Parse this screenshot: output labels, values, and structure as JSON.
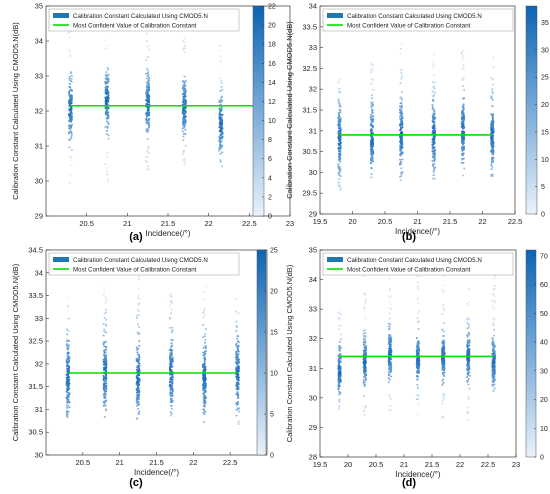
{
  "colors": {
    "scatter": "#1f77b4",
    "fit_line": "#00e000",
    "cmap_low": "#e9f2fb",
    "cmap_high": "#0a64b5"
  },
  "chart_data": [
    {
      "type": "scatter",
      "panel_label": "(a)",
      "ylabel": "Calibration Constant Calculated Using CMOD5.N(dB)",
      "xlabel": "Incidence(/°)",
      "xlim": [
        20,
        23
      ],
      "ylim": [
        29,
        35
      ],
      "xticks": [
        20.5,
        21,
        21.5,
        22,
        22.5,
        23
      ],
      "xtick_labels": [
        "20.5",
        "21",
        "21.5",
        "22",
        "22.5",
        "23"
      ],
      "yticks": [
        29,
        30,
        31,
        32,
        33,
        34,
        35
      ],
      "ytick_labels": [
        "29",
        "30",
        "31",
        "32",
        "33",
        "34",
        "35"
      ],
      "colorbar_ticks": [
        0,
        2,
        4,
        6,
        8,
        10,
        12,
        14,
        16,
        18,
        20,
        22
      ],
      "colorbar_tick_labels": [
        "0",
        "2",
        "4",
        "6",
        "8",
        "10",
        "12",
        "14",
        "16",
        "18",
        "20",
        "22"
      ],
      "colorbar_range": [
        0,
        22
      ],
      "legend": [
        "Calibration Constant Calculated Using CMOD5.N",
        "Most Confident Value of Calibration Constant"
      ],
      "legend_position": "top-left",
      "fit_line": {
        "x": [
          20.3,
          22.6
        ],
        "y": 32.15
      },
      "clusters": [
        {
          "x": 20.3,
          "ymin": 29.9,
          "ymax": 34.6,
          "center": 32.1
        },
        {
          "x": 20.75,
          "ymin": 29.8,
          "ymax": 34.7,
          "center": 32.3
        },
        {
          "x": 21.25,
          "ymin": 30.3,
          "ymax": 34.6,
          "center": 32.2
        },
        {
          "x": 21.7,
          "ymin": 30.3,
          "ymax": 34.6,
          "center": 32.1
        },
        {
          "x": 22.15,
          "ymin": 30.4,
          "ymax": 34.7,
          "center": 31.6
        },
        {
          "x": 22.6,
          "ymin": 30.2,
          "ymax": 34.5,
          "center": 31.7
        }
      ]
    },
    {
      "type": "scatter",
      "panel_label": "(b)",
      "ylabel": "Calibration Constant Calculated Using CMOD5.N(dB)",
      "xlabel": "Incidence(/°)",
      "xlim": [
        19.5,
        22.5
      ],
      "ylim": [
        29,
        34
      ],
      "xticks": [
        19.5,
        20,
        20.5,
        21,
        21.5,
        22,
        22.5
      ],
      "xtick_labels": [
        "19.5",
        "20",
        "20.5",
        "21",
        "21.5",
        "22",
        "22.5"
      ],
      "yticks": [
        29,
        29.5,
        30,
        30.5,
        31,
        31.5,
        32,
        32.5,
        33,
        33.5,
        34
      ],
      "ytick_labels": [
        "29",
        "29.5",
        "30",
        "30.5",
        "31",
        "31.5",
        "32",
        "32.5",
        "33",
        "33.5",
        "34"
      ],
      "colorbar_ticks": [
        0,
        5,
        10,
        15,
        20,
        25,
        30,
        35
      ],
      "colorbar_tick_labels": [
        "0",
        "5",
        "10",
        "15",
        "20",
        "25",
        "30",
        "35"
      ],
      "colorbar_range": [
        0,
        38
      ],
      "legend": [
        "Calibration Constant Calculated Using CMOD5.N",
        "Most Confident Value of Calibration Constant"
      ],
      "legend_position": "top-left",
      "fit_line": {
        "x": [
          19.8,
          22.15
        ],
        "y": 30.9
      },
      "clusters": [
        {
          "x": 19.8,
          "ymin": 29.5,
          "ymax": 32.4,
          "center": 30.8
        },
        {
          "x": 20.3,
          "ymin": 29.7,
          "ymax": 32.7,
          "center": 30.8
        },
        {
          "x": 20.75,
          "ymin": 29.8,
          "ymax": 33.1,
          "center": 30.9
        },
        {
          "x": 21.25,
          "ymin": 29.8,
          "ymax": 33.0,
          "center": 30.9
        },
        {
          "x": 21.7,
          "ymin": 29.9,
          "ymax": 33.1,
          "center": 31.0
        },
        {
          "x": 22.15,
          "ymin": 29.9,
          "ymax": 32.9,
          "center": 30.9
        }
      ]
    },
    {
      "type": "scatter",
      "panel_label": "(c)",
      "ylabel": "Calibration Constant Calculated Using CMOD5.N(dB)",
      "xlabel": "Incidence(/°)",
      "xlim": [
        20,
        23
      ],
      "ylim": [
        30,
        34.5
      ],
      "xticks": [
        20.5,
        21,
        21.5,
        22,
        22.5
      ],
      "xtick_labels": [
        "20.5",
        "21",
        "21.5",
        "22",
        "22.5"
      ],
      "yticks": [
        30,
        30.5,
        31,
        31.5,
        32,
        32.5,
        33,
        33.5,
        34,
        34.5
      ],
      "ytick_labels": [
        "30",
        "30.5",
        "31",
        "31.5",
        "32",
        "32.5",
        "33",
        "33.5",
        "34",
        "34.5"
      ],
      "colorbar_ticks": [
        0,
        5,
        10,
        15,
        20,
        25
      ],
      "colorbar_tick_labels": [
        "0",
        "5",
        "10",
        "15",
        "20",
        "25"
      ],
      "colorbar_range": [
        0,
        25
      ],
      "legend": [
        "Calibration Constant Calculated Using CMOD5.N",
        "Most Confident Value of Calibration Constant"
      ],
      "legend_position": "top-left",
      "fit_line": {
        "x": [
          20.3,
          22.6
        ],
        "y": 31.8
      },
      "clusters": [
        {
          "x": 20.3,
          "ymin": 30.8,
          "ymax": 33.5,
          "center": 31.7
        },
        {
          "x": 20.8,
          "ymin": 30.8,
          "ymax": 33.7,
          "center": 31.8
        },
        {
          "x": 21.25,
          "ymin": 30.8,
          "ymax": 34.0,
          "center": 31.7
        },
        {
          "x": 21.7,
          "ymin": 30.8,
          "ymax": 33.7,
          "center": 31.8
        },
        {
          "x": 22.15,
          "ymin": 30.7,
          "ymax": 33.7,
          "center": 31.7
        },
        {
          "x": 22.6,
          "ymin": 30.6,
          "ymax": 33.6,
          "center": 31.8
        }
      ]
    },
    {
      "type": "scatter",
      "panel_label": "(d)",
      "ylabel": "Calibration Constant Calculated Using CMOD5.N(dB)",
      "xlabel": "Incidence(/°)",
      "xlim": [
        19.5,
        23
      ],
      "ylim": [
        28,
        35
      ],
      "xticks": [
        19.5,
        20,
        20.5,
        21,
        21.5,
        22,
        22.5,
        23
      ],
      "xtick_labels": [
        "19.5",
        "20",
        "20.5",
        "21",
        "21.5",
        "22",
        "22.5",
        "23"
      ],
      "yticks": [
        28,
        29,
        30,
        31,
        32,
        33,
        34,
        35
      ],
      "ytick_labels": [
        "28",
        "29",
        "30",
        "31",
        "32",
        "33",
        "34",
        "35"
      ],
      "colorbar_ticks": [
        0,
        10,
        20,
        30,
        40,
        50,
        60,
        70
      ],
      "colorbar_tick_labels": [
        "0",
        "10",
        "20",
        "30",
        "40",
        "50",
        "60",
        "70"
      ],
      "colorbar_range": [
        0,
        72
      ],
      "legend": [
        "Calibration Constant Calculated Using CMOD5.N",
        "Most Confident Value of Calibration Constant"
      ],
      "legend_position": "top-left",
      "fit_line": {
        "x": [
          19.85,
          22.6
        ],
        "y": 31.4
      },
      "clusters": [
        {
          "x": 19.85,
          "ymin": 29.4,
          "ymax": 33.0,
          "center": 30.9
        },
        {
          "x": 20.3,
          "ymin": 29.4,
          "ymax": 34.5,
          "center": 31.2
        },
        {
          "x": 20.75,
          "ymin": 29.5,
          "ymax": 34.8,
          "center": 31.5
        },
        {
          "x": 21.25,
          "ymin": 29.4,
          "ymax": 34.8,
          "center": 31.3
        },
        {
          "x": 21.7,
          "ymin": 29.3,
          "ymax": 34.8,
          "center": 31.4
        },
        {
          "x": 22.15,
          "ymin": 29.2,
          "ymax": 34.7,
          "center": 31.4
        },
        {
          "x": 22.6,
          "ymin": 30.0,
          "ymax": 34.6,
          "center": 31.2
        }
      ]
    }
  ]
}
